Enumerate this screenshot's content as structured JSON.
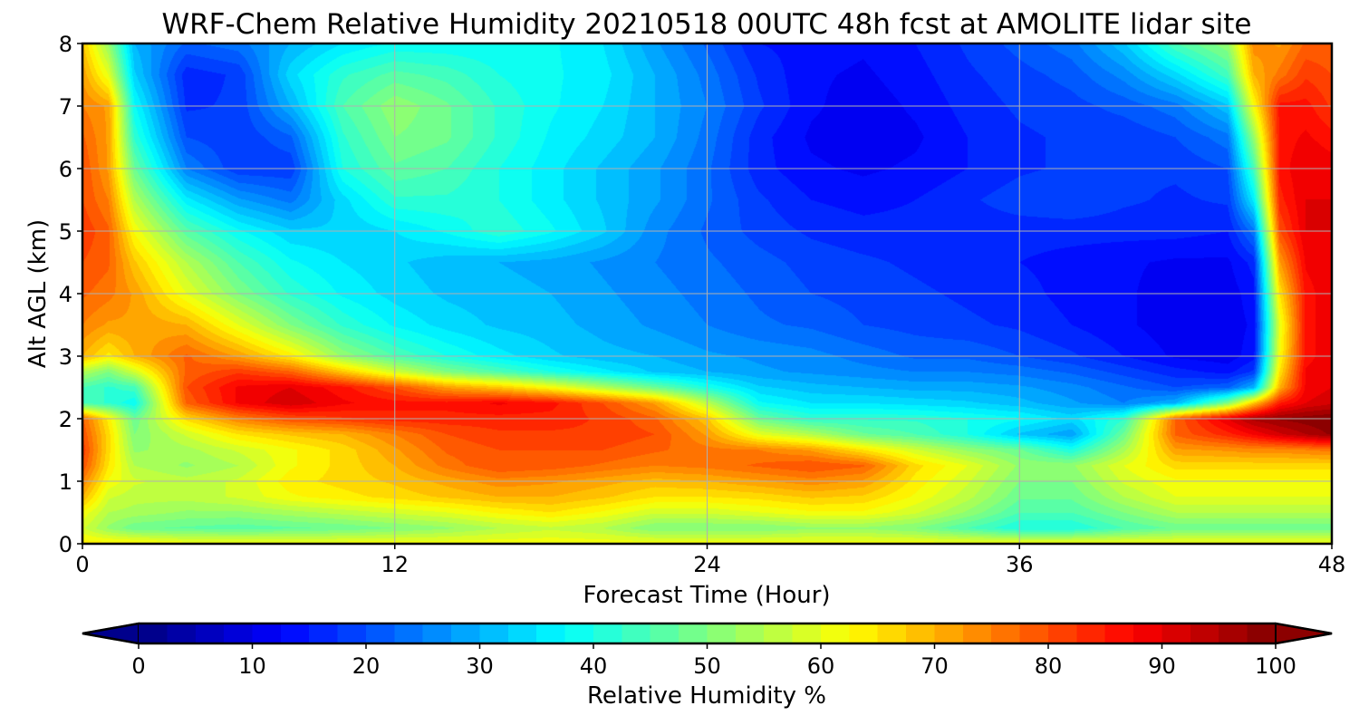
{
  "chart_data": {
    "type": "heatmap",
    "title": "WRF-Chem Relative Humidity 20210518 00UTC 48h fcst at AMOLITE lidar site",
    "xlabel": "Forecast Time (Hour)",
    "ylabel": "Alt AGL (km)",
    "colorbar_label": "Relative Humidity %",
    "xlim": [
      0,
      48
    ],
    "ylim": [
      0,
      8
    ],
    "clim": [
      0,
      100
    ],
    "colormap": "jet",
    "colorbar_extend": "both",
    "grid": true,
    "x_ticks": [
      0,
      12,
      24,
      36,
      48
    ],
    "y_ticks": [
      0,
      1,
      2,
      3,
      4,
      5,
      6,
      7,
      8
    ],
    "colorbar_ticks": [
      0,
      10,
      20,
      30,
      40,
      50,
      60,
      70,
      80,
      90,
      100
    ],
    "x": [
      0,
      1,
      2,
      4,
      6,
      8,
      10,
      12,
      14,
      16,
      18,
      20,
      22,
      24,
      26,
      28,
      30,
      32,
      34,
      36,
      38,
      40,
      42,
      44,
      45,
      46,
      47,
      48
    ],
    "y": [
      0,
      0.25,
      0.5,
      0.75,
      1,
      1.25,
      1.5,
      1.75,
      2,
      2.25,
      2.5,
      2.75,
      3,
      3.5,
      4,
      4.5,
      5,
      5.5,
      6,
      6.5,
      7,
      7.5,
      8
    ],
    "z": [
      [
        64,
        64,
        64,
        62,
        62,
        62,
        62,
        62,
        62,
        62,
        62,
        62,
        62,
        62,
        62,
        62,
        62,
        62,
        62,
        62,
        62,
        62,
        62,
        62,
        62,
        62,
        62,
        62
      ],
      [
        58,
        52,
        48,
        47,
        46,
        47,
        48,
        50,
        52,
        55,
        57,
        55,
        50,
        50,
        50,
        52,
        52,
        50,
        45,
        40,
        40,
        45,
        48,
        48,
        48,
        48,
        48,
        48
      ],
      [
        62,
        55,
        54,
        52,
        52,
        54,
        56,
        58,
        60,
        63,
        65,
        62,
        58,
        58,
        60,
        62,
        62,
        58,
        52,
        45,
        45,
        50,
        55,
        55,
        55,
        55,
        55,
        55
      ],
      [
        70,
        58,
        56,
        56,
        58,
        62,
        64,
        66,
        68,
        70,
        70,
        68,
        65,
        65,
        66,
        68,
        67,
        62,
        56,
        48,
        48,
        55,
        60,
        60,
        60,
        60,
        60,
        60
      ],
      [
        75,
        62,
        58,
        56,
        58,
        64,
        66,
        68,
        71,
        74,
        73,
        71,
        69,
        70,
        72,
        74,
        72,
        64,
        58,
        50,
        50,
        58,
        62,
        62,
        62,
        62,
        62,
        62
      ],
      [
        80,
        65,
        55,
        52,
        55,
        62,
        66,
        70,
        76,
        80,
        79,
        77,
        75,
        76,
        78,
        80,
        78,
        66,
        60,
        52,
        52,
        60,
        66,
        66,
        66,
        66,
        66,
        66
      ],
      [
        82,
        66,
        52,
        54,
        58,
        62,
        66,
        72,
        78,
        80,
        80,
        80,
        78,
        76,
        75,
        72,
        65,
        58,
        52,
        48,
        40,
        54,
        72,
        73,
        74,
        74,
        75,
        76
      ],
      [
        80,
        66,
        50,
        58,
        65,
        68,
        70,
        75,
        80,
        82,
        82,
        82,
        80,
        72,
        60,
        55,
        48,
        45,
        40,
        32,
        28,
        48,
        78,
        84,
        88,
        92,
        95,
        98
      ],
      [
        78,
        64,
        48,
        66,
        75,
        80,
        82,
        84,
        84,
        84,
        84,
        82,
        78,
        68,
        48,
        42,
        42,
        42,
        40,
        38,
        34,
        42,
        78,
        90,
        96,
        98,
        99,
        100
      ],
      [
        45,
        42,
        38,
        78,
        88,
        92,
        88,
        86,
        86,
        88,
        86,
        80,
        72,
        56,
        38,
        35,
        35,
        34,
        33,
        31,
        28,
        25,
        30,
        50,
        68,
        85,
        90,
        92
      ],
      [
        45,
        42,
        44,
        80,
        88,
        90,
        86,
        80,
        72,
        68,
        62,
        55,
        48,
        40,
        33,
        31,
        30,
        29,
        29,
        28,
        26,
        23,
        20,
        22,
        30,
        70,
        88,
        90
      ],
      [
        55,
        50,
        58,
        78,
        82,
        78,
        68,
        58,
        50,
        45,
        40,
        36,
        32,
        30,
        28,
        27,
        26,
        25,
        25,
        24,
        22,
        19,
        16,
        14,
        18,
        65,
        88,
        90
      ],
      [
        70,
        64,
        70,
        78,
        72,
        64,
        52,
        45,
        40,
        36,
        33,
        31,
        30,
        28,
        27,
        26,
        24,
        22,
        22,
        20,
        18,
        15,
        12,
        11,
        14,
        62,
        86,
        90
      ],
      [
        75,
        72,
        72,
        70,
        60,
        50,
        42,
        37,
        34,
        32,
        31,
        29,
        27,
        25,
        23,
        22,
        20,
        19,
        18,
        17,
        15,
        13,
        11,
        11,
        13,
        60,
        86,
        90
      ],
      [
        78,
        76,
        72,
        60,
        50,
        42,
        37,
        34,
        32,
        31,
        30,
        28,
        26,
        24,
        22,
        20,
        19,
        18,
        17,
        16,
        14,
        13,
        11,
        11,
        14,
        65,
        86,
        90
      ],
      [
        80,
        78,
        68,
        55,
        45,
        38,
        35,
        33,
        31,
        30,
        29,
        27,
        25,
        23,
        21,
        19,
        18,
        17,
        16,
        15,
        14,
        13,
        12,
        12,
        16,
        72,
        88,
        90
      ],
      [
        82,
        78,
        62,
        46,
        38,
        33,
        33,
        35,
        38,
        42,
        38,
        33,
        26,
        22,
        19,
        17,
        16,
        16,
        16,
        16,
        16,
        16,
        16,
        15,
        24,
        80,
        90,
        90
      ],
      [
        80,
        75,
        55,
        36,
        28,
        24,
        34,
        42,
        42,
        40,
        36,
        32,
        28,
        23,
        18,
        15,
        14,
        15,
        17,
        19,
        20,
        18,
        17,
        18,
        36,
        84,
        90,
        90
      ],
      [
        80,
        72,
        48,
        25,
        18,
        18,
        40,
        47,
        45,
        40,
        36,
        32,
        28,
        23,
        16,
        13,
        12,
        13,
        15,
        17,
        18,
        18,
        18,
        20,
        44,
        86,
        90,
        89
      ],
      [
        78,
        72,
        42,
        20,
        18,
        22,
        42,
        50,
        48,
        42,
        37,
        34,
        30,
        24,
        16,
        12,
        11,
        12,
        15,
        17,
        18,
        18,
        20,
        24,
        52,
        86,
        88,
        86
      ],
      [
        75,
        72,
        38,
        17,
        18,
        30,
        45,
        52,
        48,
        42,
        38,
        35,
        30,
        25,
        18,
        13,
        11,
        13,
        16,
        18,
        19,
        21,
        24,
        32,
        62,
        86,
        86,
        82
      ],
      [
        72,
        60,
        33,
        16,
        18,
        34,
        42,
        46,
        44,
        40,
        38,
        36,
        30,
        24,
        17,
        13,
        12,
        14,
        17,
        19,
        21,
        26,
        34,
        44,
        70,
        76,
        82,
        80
      ],
      [
        68,
        52,
        30,
        22,
        24,
        30,
        35,
        38,
        38,
        38,
        38,
        35,
        28,
        22,
        15,
        14,
        13,
        15,
        18,
        21,
        24,
        32,
        45,
        52,
        74,
        72,
        78,
        78
      ]
    ]
  }
}
